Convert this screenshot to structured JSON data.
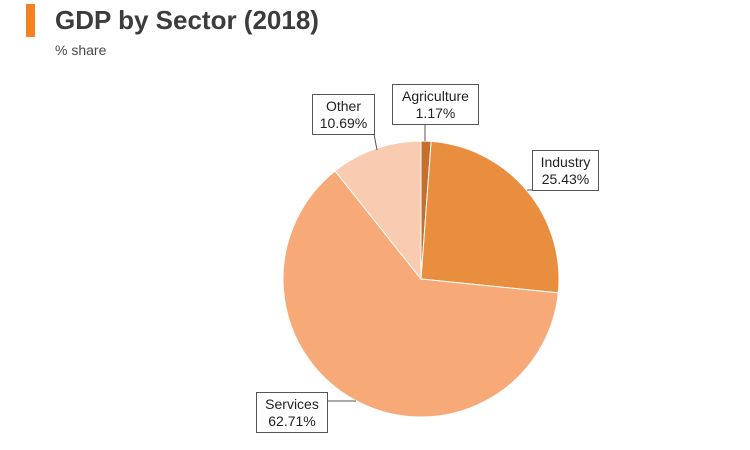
{
  "header": {
    "title": "GDP by Sector (2018)",
    "subtitle": "% share",
    "accent_color": "#f58220"
  },
  "chart_data": {
    "type": "pie",
    "title": "GDP by Sector (2018)",
    "subtitle": "% share",
    "start": "12 o'clock, clockwise",
    "slices": [
      {
        "label": "Agriculture",
        "value": 1.17,
        "value_label": "1.17%",
        "color": "#c66f2c"
      },
      {
        "label": "Industry",
        "value": 25.43,
        "value_label": "25.43%",
        "color": "#e88e3e"
      },
      {
        "label": "Services",
        "value": 62.71,
        "value_label": "62.71%",
        "color": "#f7aa78"
      },
      {
        "label": "Other",
        "value": 10.69,
        "value_label": "10.69%",
        "color": "#f9cbb0"
      }
    ]
  }
}
